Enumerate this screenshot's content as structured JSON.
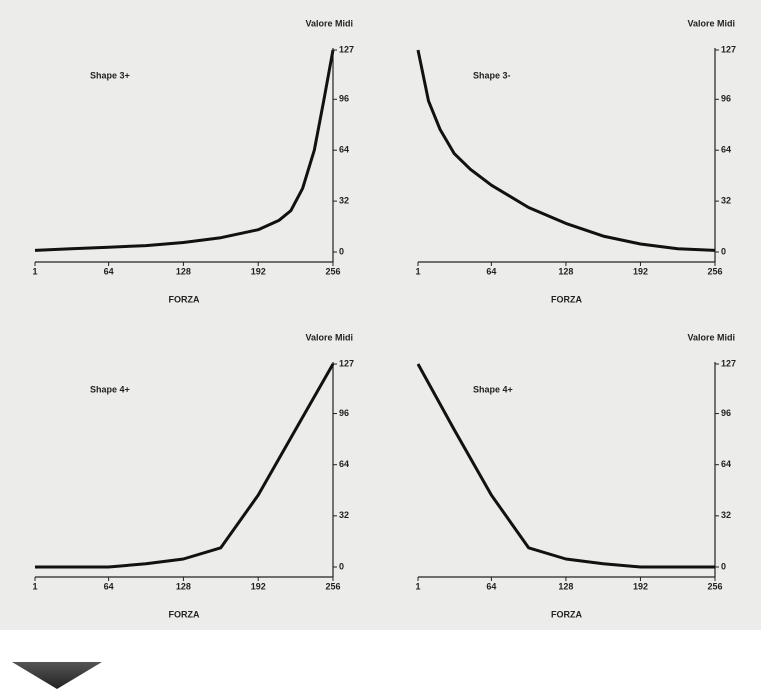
{
  "chart_data": [
    {
      "type": "line",
      "label": "Shape 3+",
      "y_label": "Valore Midi",
      "x_label": "FORZA",
      "color": "#111111",
      "x": [
        1,
        32,
        64,
        96,
        128,
        160,
        192,
        210,
        220,
        230,
        240,
        248,
        256
      ],
      "values": [
        1,
        2,
        3,
        4,
        6,
        9,
        14,
        20,
        26,
        40,
        64,
        95,
        127
      ],
      "xlim": [
        1,
        256
      ],
      "ylim": [
        0,
        127
      ],
      "xticks": [
        1,
        64,
        128,
        192,
        256
      ],
      "yticks": [
        0,
        32,
        64,
        96,
        127
      ]
    },
    {
      "type": "line",
      "label": "Shape 3-",
      "y_label": "Valore Midi",
      "x_label": "FORZA",
      "color": "#111111",
      "x": [
        1,
        10,
        20,
        32,
        46,
        64,
        96,
        128,
        160,
        192,
        224,
        256
      ],
      "values": [
        127,
        95,
        77,
        62,
        52,
        42,
        28,
        18,
        10,
        5,
        2,
        1
      ],
      "xlim": [
        1,
        256
      ],
      "ylim": [
        0,
        127
      ],
      "xticks": [
        1,
        64,
        128,
        192,
        256
      ],
      "yticks": [
        0,
        32,
        64,
        96,
        127
      ]
    },
    {
      "type": "line",
      "label": "Shape 4+",
      "y_label": "Valore Midi",
      "x_label": "FORZA",
      "color": "#111111",
      "x": [
        1,
        64,
        96,
        128,
        160,
        192,
        224,
        256
      ],
      "values": [
        0,
        0,
        2,
        5,
        12,
        45,
        86,
        127
      ],
      "xlim": [
        1,
        256
      ],
      "ylim": [
        0,
        127
      ],
      "xticks": [
        1,
        64,
        128,
        192,
        256
      ],
      "yticks": [
        0,
        32,
        64,
        96,
        127
      ]
    },
    {
      "type": "line",
      "label": "Shape 4+",
      "y_label": "Valore Midi",
      "x_label": "FORZA",
      "color": "#111111",
      "x": [
        1,
        32,
        64,
        96,
        128,
        160,
        192,
        256
      ],
      "values": [
        127,
        86,
        45,
        12,
        5,
        2,
        0,
        0
      ],
      "xlim": [
        1,
        256
      ],
      "ylim": [
        0,
        127
      ],
      "xticks": [
        1,
        64,
        128,
        192,
        256
      ],
      "yticks": [
        0,
        32,
        64,
        96,
        127
      ]
    }
  ]
}
